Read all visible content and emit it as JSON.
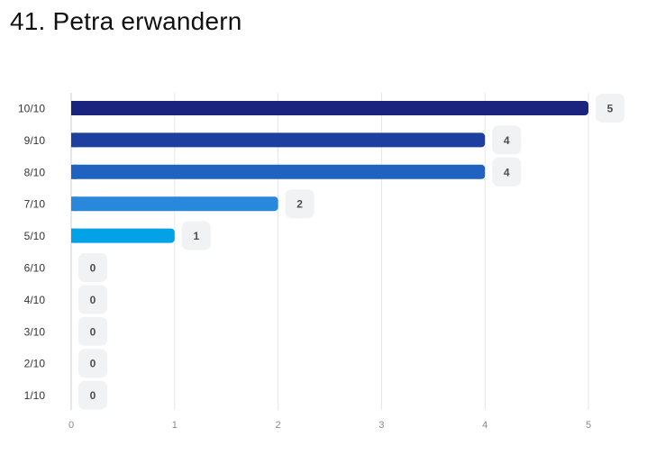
{
  "chart_data": {
    "type": "bar",
    "orientation": "horizontal",
    "title": "41. Petra erwandern",
    "categories": [
      "10/10",
      "9/10",
      "8/10",
      "7/10",
      "5/10",
      "6/10",
      "4/10",
      "3/10",
      "2/10",
      "1/10"
    ],
    "values": [
      5,
      4,
      4,
      2,
      1,
      0,
      0,
      0,
      0,
      0
    ],
    "bar_colors": [
      "#1a237e",
      "#1e3fa0",
      "#1f62c0",
      "#2a88dc",
      "#03a1e6",
      "#03a1e6",
      "#03a1e6",
      "#03a1e6",
      "#03a1e6",
      "#03a1e6"
    ],
    "xlim": [
      0,
      5
    ],
    "xticks": [
      "0",
      "1",
      "2",
      "3",
      "4",
      "5"
    ],
    "xlabel": "",
    "ylabel": "",
    "grid": true,
    "legend": "none"
  }
}
